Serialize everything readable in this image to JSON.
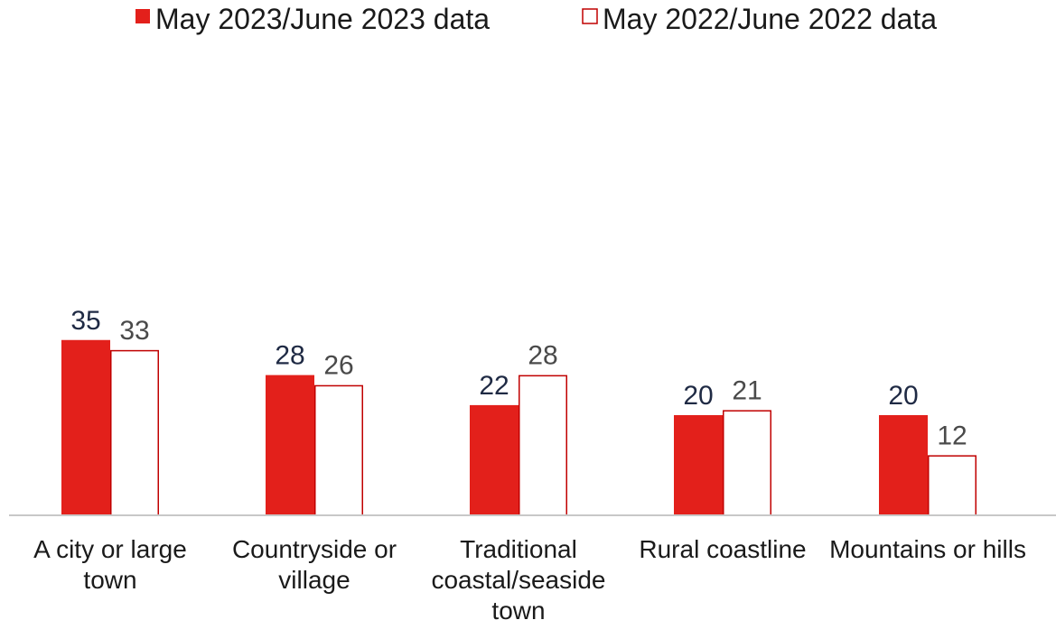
{
  "chart_data": {
    "type": "bar",
    "categories": [
      [
        "A city or large",
        "town"
      ],
      [
        "Countryside or",
        "village"
      ],
      [
        "Traditional",
        "coastal/seaside",
        "town"
      ],
      [
        "Rural coastline"
      ],
      [
        "Mountains or hills"
      ]
    ],
    "series": [
      {
        "name": "May 2023/June 2023 data",
        "values": [
          35,
          28,
          22,
          20,
          20
        ],
        "color": "#e3201b",
        "style": "filled",
        "label_color": "#1f2a44"
      },
      {
        "name": "May 2022/June 2022  data",
        "values": [
          33,
          26,
          28,
          21,
          12
        ],
        "color": "#c00000",
        "style": "outline",
        "label_color": "#4a4a4a"
      }
    ],
    "ylim": [
      0,
      100
    ],
    "grid": false,
    "legend_position": "top"
  }
}
